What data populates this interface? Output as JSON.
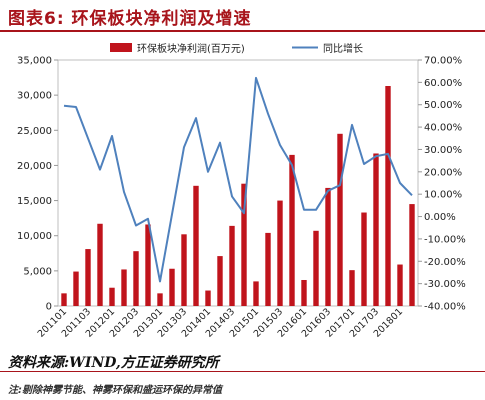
{
  "header": {
    "figure_title": "图表6:   环保板块净利润及增速"
  },
  "footer": {
    "source": "资料来源:WIND,方正证券研究所",
    "note": "注:剔除神雾节能、神雾环保和盛运环保的异常值"
  },
  "chart_data": {
    "type": "bar+line",
    "categories": [
      "2011Q1",
      "2011Q2",
      "2011Q3",
      "2011Q4",
      "2012Q1",
      "2012Q2",
      "2012Q3",
      "2012Q4",
      "2013Q1",
      "2013Q2",
      "2013Q3",
      "2013Q4",
      "2014Q1",
      "2014Q2",
      "2014Q3",
      "2014Q4",
      "2015Q1",
      "2015Q2",
      "2015Q3",
      "2015Q4",
      "2016Q1",
      "2016Q2",
      "2016Q3",
      "2016Q4",
      "2017Q1",
      "2017Q2",
      "2017Q3",
      "2017Q4",
      "2018Q1",
      "2018Q2"
    ],
    "x_tick_labels": [
      "201101",
      "201103",
      "201201",
      "201203",
      "201301",
      "201303",
      "201401",
      "201403",
      "201501",
      "201503",
      "201601",
      "201603",
      "201701",
      "201703",
      "201801"
    ],
    "series": [
      {
        "name": "环保板块净利润(百万元)",
        "type": "bar",
        "axis": "left",
        "color": "#c0141c",
        "values": [
          1800,
          4900,
          8100,
          11700,
          2600,
          5200,
          7800,
          11600,
          1800,
          5300,
          10200,
          17100,
          2200,
          7100,
          11400,
          17400,
          3500,
          10400,
          15000,
          21500,
          3700,
          10700,
          16800,
          24500,
          5100,
          13300,
          21700,
          31300,
          5900,
          14500
        ]
      },
      {
        "name": "同比增长",
        "type": "line",
        "axis": "right",
        "color": "#4f81bd",
        "values": [
          49.5,
          49.0,
          35.0,
          21.0,
          36.0,
          11.0,
          -4.0,
          -1.0,
          -29.0,
          1.0,
          31.0,
          44.0,
          20.0,
          33.0,
          9.0,
          1.5,
          62.0,
          46.0,
          32.0,
          23.0,
          3.0,
          3.0,
          11.5,
          14.0,
          41.0,
          23.5,
          27.0,
          28.0,
          15.0,
          9.5
        ]
      }
    ],
    "y_left": {
      "min": 0,
      "max": 35000,
      "ticks": [
        0,
        5000,
        10000,
        15000,
        20000,
        25000,
        30000,
        35000
      ],
      "tick_labels": [
        "0",
        "5,000",
        "10,000",
        "15,000",
        "20,000",
        "25,000",
        "30,000",
        "35,000"
      ]
    },
    "y_right": {
      "min": -40,
      "max": 70,
      "ticks": [
        -40,
        -30,
        -20,
        -10,
        0,
        10,
        20,
        30,
        40,
        50,
        60,
        70
      ],
      "tick_labels": [
        "-40.00%",
        "-30.00%",
        "-20.00%",
        "-10.00%",
        "0.00%",
        "10.00%",
        "20.00%",
        "30.00%",
        "40.00%",
        "50.00%",
        "60.00%",
        "70.00%"
      ]
    },
    "legend_position": "top",
    "grid": false
  }
}
